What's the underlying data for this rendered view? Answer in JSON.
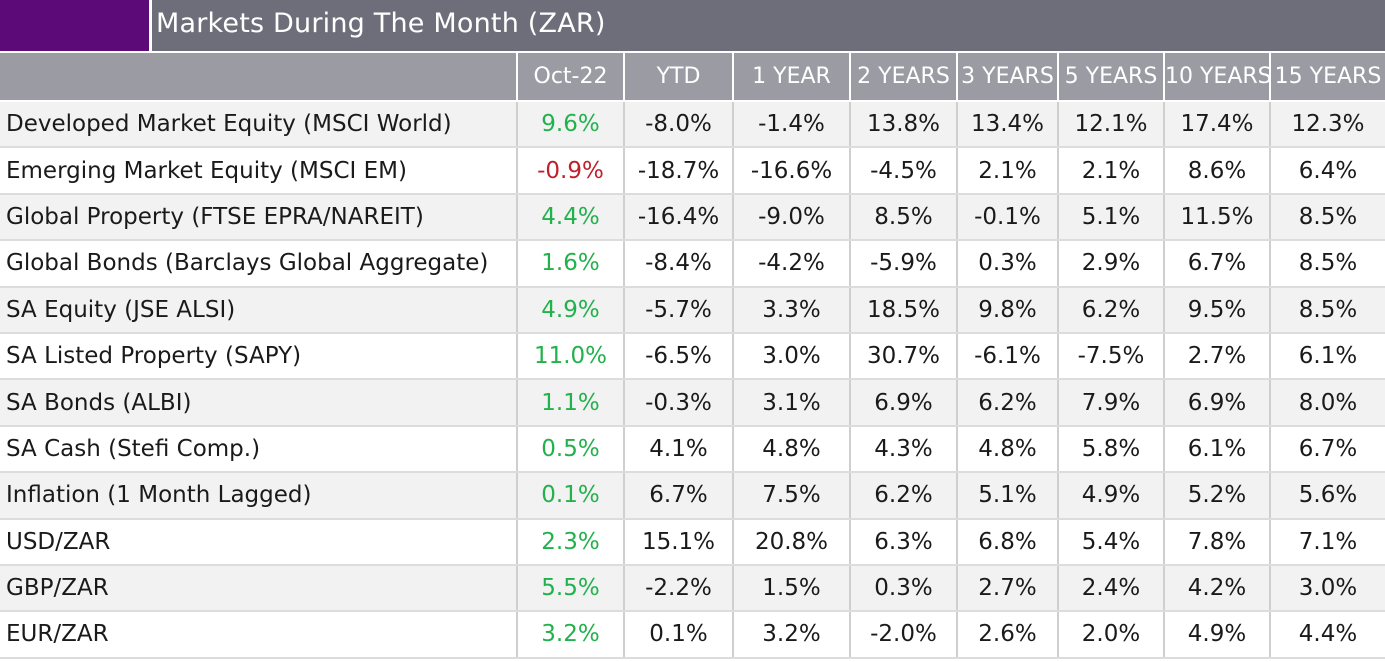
{
  "title": "Markets During The Month (ZAR)",
  "colors": {
    "accent": "#5c0a78",
    "title_bar": "#6e6e7a",
    "header": "#9b9ba3",
    "positive": "#22b14c",
    "negative": "#c0202a"
  },
  "table": {
    "columns": [
      "",
      "Oct-22",
      "YTD",
      "1 YEAR",
      "2 YEARS",
      "3 YEARS",
      "5 YEARS",
      "10 YEARS",
      "15 YEARS"
    ],
    "rows": [
      [
        "Developed Market Equity (MSCI World)",
        "9.6%",
        "-8.0%",
        "-1.4%",
        "13.8%",
        "13.4%",
        "12.1%",
        "17.4%",
        "12.3%"
      ],
      [
        "Emerging Market Equity (MSCI EM)",
        "-0.9%",
        "-18.7%",
        "-16.6%",
        "-4.5%",
        "2.1%",
        "2.1%",
        "8.6%",
        "6.4%"
      ],
      [
        "Global Property (FTSE EPRA/NAREIT)",
        "4.4%",
        "-16.4%",
        "-9.0%",
        "8.5%",
        "-0.1%",
        "5.1%",
        "11.5%",
        "8.5%"
      ],
      [
        "Global Bonds (Barclays Global Aggregate)",
        "1.6%",
        "-8.4%",
        "-4.2%",
        "-5.9%",
        "0.3%",
        "2.9%",
        "6.7%",
        "8.5%"
      ],
      [
        "SA Equity (JSE ALSI)",
        "4.9%",
        "-5.7%",
        "3.3%",
        "18.5%",
        "9.8%",
        "6.2%",
        "9.5%",
        "8.5%"
      ],
      [
        "SA Listed Property (SAPY)",
        "11.0%",
        "-6.5%",
        "3.0%",
        "30.7%",
        "-6.1%",
        "-7.5%",
        "2.7%",
        "6.1%"
      ],
      [
        "SA Bonds (ALBI)",
        "1.1%",
        "-0.3%",
        "3.1%",
        "6.9%",
        "6.2%",
        "7.9%",
        "6.9%",
        "8.0%"
      ],
      [
        "SA Cash (Stefi Comp.)",
        "0.5%",
        "4.1%",
        "4.8%",
        "4.3%",
        "4.8%",
        "5.8%",
        "6.1%",
        "6.7%"
      ],
      [
        "Inflation (1 Month Lagged)",
        "0.1%",
        "6.7%",
        "7.5%",
        "6.2%",
        "5.1%",
        "4.9%",
        "5.2%",
        "5.6%"
      ],
      [
        "USD/ZAR",
        "2.3%",
        "15.1%",
        "20.8%",
        "6.3%",
        "6.8%",
        "5.4%",
        "7.8%",
        "7.1%"
      ],
      [
        "GBP/ZAR",
        "5.5%",
        "-2.2%",
        "1.5%",
        "0.3%",
        "2.7%",
        "2.4%",
        "4.2%",
        "3.0%"
      ],
      [
        "EUR/ZAR",
        "3.2%",
        "0.1%",
        "3.2%",
        "-2.0%",
        "2.6%",
        "2.0%",
        "4.9%",
        "4.4%"
      ]
    ]
  },
  "chart_data": {
    "type": "table",
    "title": "Markets During The Month (ZAR)",
    "columns": [
      "Oct-22",
      "YTD",
      "1 YEAR",
      "2 YEARS",
      "3 YEARS",
      "5 YEARS",
      "10 YEARS",
      "15 YEARS"
    ],
    "rows": [
      {
        "name": "Developed Market Equity (MSCI World)",
        "values": [
          9.6,
          -8.0,
          -1.4,
          13.8,
          13.4,
          12.1,
          17.4,
          12.3
        ]
      },
      {
        "name": "Emerging Market Equity (MSCI EM)",
        "values": [
          -0.9,
          -18.7,
          -16.6,
          -4.5,
          2.1,
          2.1,
          8.6,
          6.4
        ]
      },
      {
        "name": "Global Property (FTSE EPRA/NAREIT)",
        "values": [
          4.4,
          -16.4,
          -9.0,
          8.5,
          -0.1,
          5.1,
          11.5,
          8.5
        ]
      },
      {
        "name": "Global Bonds (Barclays Global Aggregate)",
        "values": [
          1.6,
          -8.4,
          -4.2,
          -5.9,
          0.3,
          2.9,
          6.7,
          8.5
        ]
      },
      {
        "name": "SA Equity (JSE ALSI)",
        "values": [
          4.9,
          -5.7,
          3.3,
          18.5,
          9.8,
          6.2,
          9.5,
          8.5
        ]
      },
      {
        "name": "SA Listed Property (SAPY)",
        "values": [
          11.0,
          -6.5,
          3.0,
          30.7,
          -6.1,
          -7.5,
          2.7,
          6.1
        ]
      },
      {
        "name": "SA Bonds (ALBI)",
        "values": [
          1.1,
          -0.3,
          3.1,
          6.9,
          6.2,
          7.9,
          6.9,
          8.0
        ]
      },
      {
        "name": "SA Cash (Stefi Comp.)",
        "values": [
          0.5,
          4.1,
          4.8,
          4.3,
          4.8,
          5.8,
          6.1,
          6.7
        ]
      },
      {
        "name": "Inflation (1 Month Lagged)",
        "values": [
          0.1,
          6.7,
          7.5,
          6.2,
          5.1,
          4.9,
          5.2,
          5.6
        ]
      },
      {
        "name": "USD/ZAR",
        "values": [
          2.3,
          15.1,
          20.8,
          6.3,
          6.8,
          5.4,
          7.8,
          7.1
        ]
      },
      {
        "name": "GBP/ZAR",
        "values": [
          5.5,
          -2.2,
          1.5,
          0.3,
          2.7,
          2.4,
          4.2,
          3.0
        ]
      },
      {
        "name": "EUR/ZAR",
        "values": [
          3.2,
          0.1,
          3.2,
          -2.0,
          2.6,
          2.0,
          4.9,
          4.4
        ]
      }
    ]
  }
}
